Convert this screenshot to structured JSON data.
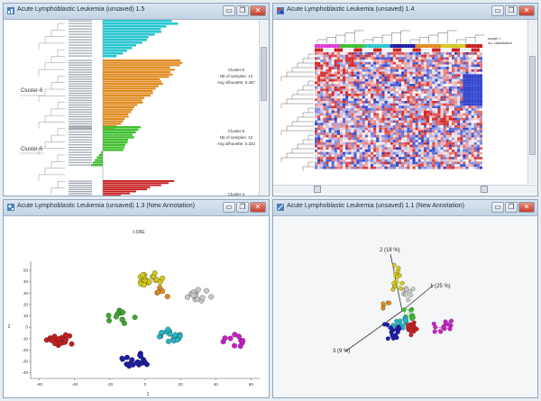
{
  "windows": {
    "w15": {
      "title": "Acute Lymphoblastic Leukemia (unsaved) 1.5"
    },
    "w14": {
      "title": "Acute Lymphoblastic Leukemia (unsaved) 1.4"
    },
    "w13": {
      "title": "Acute Lymphoblastic Leukemia (unsaved) 1.3 (New Annotation)"
    },
    "w11": {
      "title": "Acute Lymphoblastic Leukemia (unsaved) 1.1 (New Annotation)"
    }
  },
  "window_buttons": {
    "minimize": "▭",
    "restore": "❐",
    "close": "✕"
  },
  "silhouette": {
    "clusters": [
      {
        "label": "Cluster-6",
        "color": "#e08a1e",
        "info": [
          "Cluster-6",
          "Nb of samples: 14",
          "Avg silhouette: 0.367"
        ]
      },
      {
        "label": "Cluster-5",
        "color": "#3fbf2f",
        "info": [
          "Cluster-5",
          "Nb of samples: 12",
          "Avg silhouette: 0.322"
        ]
      }
    ],
    "bottom_info": "Cluster-4"
  },
  "heatmap": {
    "legend": [
      "sample 1",
      "ALL classification"
    ]
  },
  "tsne": {
    "title": "t-SNE",
    "xlabel": "1",
    "ylabel": "2",
    "x_ticks": [
      -60,
      -40,
      -20,
      0,
      20,
      40,
      60
    ],
    "y_ticks": [
      50,
      40,
      30,
      20,
      10,
      0,
      -10,
      -20,
      -30,
      -40
    ],
    "xlim": [
      -65,
      65
    ],
    "ylim": [
      -45,
      58
    ],
    "clusters": [
      {
        "color": "#d4c81c",
        "center": [
          2,
          43
        ],
        "n": 20
      },
      {
        "color": "#e08a1e",
        "center": [
          10,
          30
        ],
        "n": 5
      },
      {
        "color": "#c9c9c9",
        "center": [
          31,
          29
        ],
        "n": 14
      },
      {
        "color": "#3fa82d",
        "center": [
          -13,
          9
        ],
        "n": 12
      },
      {
        "color": "#c81e1e",
        "center": [
          -48,
          -12
        ],
        "n": 22
      },
      {
        "color": "#1b1ba8",
        "center": [
          -5,
          -29
        ],
        "n": 20
      },
      {
        "color": "#27b5c4",
        "center": [
          14,
          -8
        ],
        "n": 18
      },
      {
        "color": "#c81ec8",
        "center": [
          51,
          -12
        ],
        "n": 10
      }
    ]
  },
  "pca": {
    "axis_labels": [
      "2 (18 %)",
      "1 (25 %)",
      "3 (9 %)"
    ]
  }
}
